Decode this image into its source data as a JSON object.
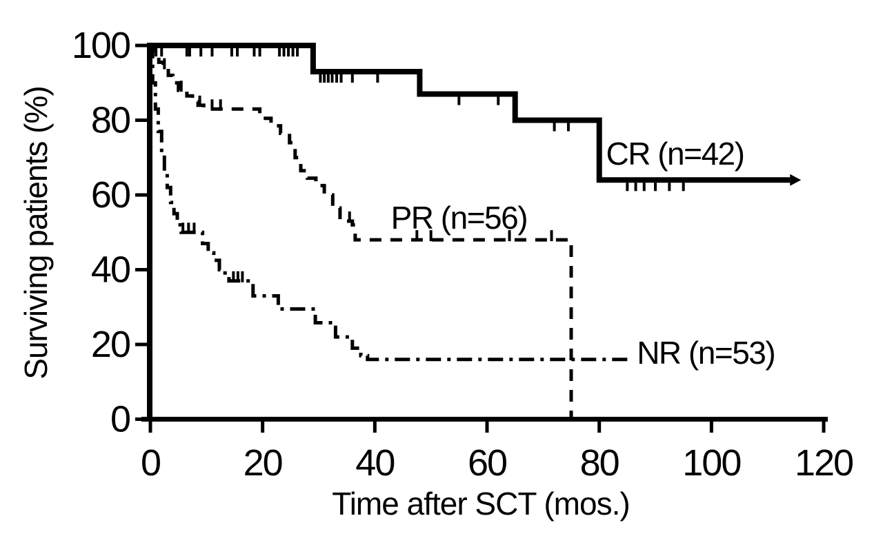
{
  "chart_data": {
    "type": "line",
    "subtype": "kaplan-meier-step",
    "title": "",
    "xlabel": "Time after SCT (mos.)",
    "ylabel": "Surviving patients (%)",
    "xlim": [
      0,
      120
    ],
    "ylim": [
      0,
      100
    ],
    "xticks": [
      0,
      20,
      40,
      60,
      80,
      100,
      120
    ],
    "yticks": [
      0,
      20,
      40,
      60,
      80,
      100
    ],
    "grid": false,
    "legend_position": "inline-labels",
    "axis_color": "#000000",
    "background": "#ffffff",
    "series": [
      {
        "name": "CR",
        "label": "CR (n=42)",
        "n": 42,
        "line_style": "solid",
        "censor_side": "below",
        "arrow_end": true,
        "label_anchor": [
          93.5,
          71
        ],
        "steps": [
          [
            0,
            100
          ],
          [
            29,
            100
          ],
          [
            29,
            93
          ],
          [
            48,
            93
          ],
          [
            48,
            87
          ],
          [
            65,
            87
          ],
          [
            65,
            80
          ],
          [
            80,
            80
          ],
          [
            80,
            64
          ],
          [
            114,
            64
          ]
        ],
        "censor_marks": [
          [
            1,
            100
          ],
          [
            2,
            100
          ],
          [
            6.5,
            100
          ],
          [
            7,
            100
          ],
          [
            9,
            100
          ],
          [
            11,
            100
          ],
          [
            14.5,
            100
          ],
          [
            15.5,
            100
          ],
          [
            18.5,
            100
          ],
          [
            19.5,
            100
          ],
          [
            23,
            100
          ],
          [
            23.8,
            100
          ],
          [
            24.6,
            100
          ],
          [
            25.4,
            100
          ],
          [
            26.2,
            100
          ],
          [
            30.3,
            93
          ],
          [
            31,
            93
          ],
          [
            31.7,
            93
          ],
          [
            32.4,
            93
          ],
          [
            33.2,
            93
          ],
          [
            34,
            93
          ],
          [
            36,
            93
          ],
          [
            40.5,
            93
          ],
          [
            55,
            87
          ],
          [
            62,
            87
          ],
          [
            72,
            80
          ],
          [
            74.5,
            80
          ],
          [
            85,
            64
          ],
          [
            86.5,
            64
          ],
          [
            88,
            64
          ],
          [
            90,
            64
          ],
          [
            92.5,
            64
          ],
          [
            95,
            64
          ]
        ]
      },
      {
        "name": "PR",
        "label": "PR (n=56)",
        "n": 56,
        "line_style": "dashed",
        "censor_side": "above",
        "arrow_end": false,
        "label_anchor": [
          55,
          54
        ],
        "steps": [
          [
            0,
            100
          ],
          [
            0.8,
            100
          ],
          [
            0.8,
            97.5
          ],
          [
            1.5,
            97.5
          ],
          [
            1.5,
            95.5
          ],
          [
            2.3,
            95.5
          ],
          [
            2.3,
            94
          ],
          [
            3.2,
            94
          ],
          [
            3.2,
            92
          ],
          [
            4,
            92
          ],
          [
            4,
            90
          ],
          [
            5,
            90
          ],
          [
            5,
            88
          ],
          [
            6.5,
            88
          ],
          [
            6.5,
            86.5
          ],
          [
            7.5,
            86.5
          ],
          [
            7.5,
            85
          ],
          [
            8.5,
            85
          ],
          [
            8.5,
            84
          ],
          [
            9.5,
            84
          ],
          [
            9.5,
            83
          ],
          [
            19.5,
            83
          ],
          [
            19.5,
            80.5
          ],
          [
            21.5,
            80.5
          ],
          [
            21.5,
            78.5
          ],
          [
            23.2,
            78.5
          ],
          [
            23.2,
            76.5
          ],
          [
            24.8,
            76.5
          ],
          [
            24.8,
            74
          ],
          [
            25.8,
            74
          ],
          [
            25.8,
            70
          ],
          [
            26.8,
            70
          ],
          [
            26.8,
            66.5
          ],
          [
            28,
            66.5
          ],
          [
            28,
            64.5
          ],
          [
            29.5,
            64.5
          ],
          [
            29.5,
            62.5
          ],
          [
            31,
            62.5
          ],
          [
            31,
            60
          ],
          [
            32.5,
            60
          ],
          [
            32.5,
            56.5
          ],
          [
            33.8,
            56.5
          ],
          [
            33.8,
            54
          ],
          [
            35,
            54
          ],
          [
            35,
            53
          ],
          [
            36,
            53
          ],
          [
            36,
            52
          ],
          [
            36.5,
            52
          ],
          [
            36.5,
            48
          ],
          [
            75,
            48
          ],
          [
            75,
            0
          ]
        ],
        "censor_marks": [
          [
            2.5,
            94
          ],
          [
            5.5,
            88
          ],
          [
            8.8,
            84
          ],
          [
            11,
            83
          ],
          [
            12.5,
            83
          ],
          [
            35.5,
            53
          ],
          [
            47.5,
            48
          ],
          [
            50,
            48
          ],
          [
            64,
            48
          ],
          [
            71.5,
            48
          ]
        ]
      },
      {
        "name": "NR",
        "label": "NR (n=53)",
        "n": 53,
        "line_style": "dashdot",
        "censor_side": "above",
        "arrow_end": false,
        "label_anchor": [
          99,
          17.8
        ],
        "steps": [
          [
            0,
            100
          ],
          [
            0.4,
            100
          ],
          [
            0.4,
            90
          ],
          [
            0.9,
            90
          ],
          [
            0.9,
            83
          ],
          [
            1.4,
            83
          ],
          [
            1.4,
            77
          ],
          [
            2,
            77
          ],
          [
            2,
            71
          ],
          [
            2.5,
            71
          ],
          [
            2.5,
            66
          ],
          [
            3,
            66
          ],
          [
            3,
            62
          ],
          [
            3.6,
            62
          ],
          [
            3.6,
            58
          ],
          [
            4.2,
            58
          ],
          [
            4.2,
            55
          ],
          [
            4.8,
            55
          ],
          [
            4.8,
            52
          ],
          [
            5.5,
            52
          ],
          [
            5.5,
            50
          ],
          [
            9.3,
            50
          ],
          [
            9.3,
            47
          ],
          [
            10.3,
            47
          ],
          [
            10.3,
            44.5
          ],
          [
            11.3,
            44.5
          ],
          [
            11.3,
            42.5
          ],
          [
            12.3,
            42.5
          ],
          [
            12.3,
            40
          ],
          [
            13.3,
            40
          ],
          [
            13.3,
            38.5
          ],
          [
            14,
            38.5
          ],
          [
            14,
            37
          ],
          [
            18.3,
            37
          ],
          [
            18.3,
            33
          ],
          [
            22.8,
            33
          ],
          [
            22.8,
            29.5
          ],
          [
            29.4,
            29.5
          ],
          [
            29.4,
            25.8
          ],
          [
            33,
            25.8
          ],
          [
            33,
            22
          ],
          [
            36,
            22
          ],
          [
            36,
            19
          ],
          [
            37.5,
            19
          ],
          [
            37.5,
            17
          ],
          [
            38.7,
            17
          ],
          [
            38.7,
            16
          ],
          [
            85,
            16
          ]
        ],
        "censor_marks": [
          [
            5.8,
            50
          ],
          [
            6.8,
            50
          ],
          [
            7.8,
            50
          ],
          [
            14.8,
            37
          ],
          [
            15.6,
            37
          ],
          [
            16.4,
            37
          ]
        ]
      }
    ]
  }
}
